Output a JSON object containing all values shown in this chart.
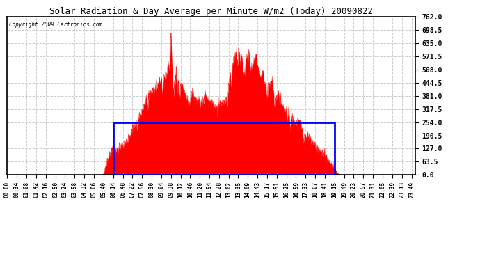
{
  "title": "Solar Radiation & Day Average per Minute W/m2 (Today) 20090822",
  "copyright": "Copyright 2009 Cartronics.com",
  "y_ticks": [
    0.0,
    63.5,
    127.0,
    190.5,
    254.0,
    317.5,
    381.0,
    444.5,
    508.0,
    571.5,
    635.0,
    698.5,
    762.0
  ],
  "y_min": 0.0,
  "y_max": 762.0,
  "bg_color": "#ffffff",
  "fill_color": "#ff0000",
  "line_color": "#ff0000",
  "grid_color": "#cccccc",
  "avg_box_color": "#0000ff",
  "avg_value": 254.0,
  "avg_start_minute": 374,
  "avg_end_minute": 1155,
  "total_minutes": 1440,
  "x_tick_labels": [
    "00:00",
    "00:34",
    "01:08",
    "01:42",
    "02:16",
    "02:50",
    "03:24",
    "03:58",
    "04:32",
    "05:06",
    "05:40",
    "06:14",
    "06:48",
    "07:22",
    "07:56",
    "08:30",
    "09:04",
    "09:38",
    "10:12",
    "10:46",
    "11:20",
    "11:54",
    "12:28",
    "13:02",
    "13:35",
    "14:09",
    "14:43",
    "15:17",
    "15:51",
    "16:25",
    "16:59",
    "17:33",
    "18:07",
    "18:41",
    "19:15",
    "19:49",
    "20:23",
    "20:57",
    "21:31",
    "22:05",
    "22:39",
    "23:13",
    "23:49"
  ],
  "x_tick_positions": [
    0,
    34,
    68,
    102,
    136,
    170,
    204,
    238,
    272,
    306,
    340,
    374,
    408,
    442,
    476,
    510,
    544,
    578,
    612,
    646,
    680,
    714,
    748,
    782,
    815,
    849,
    883,
    917,
    951,
    985,
    1019,
    1053,
    1087,
    1121,
    1155,
    1189,
    1223,
    1257,
    1291,
    1325,
    1359,
    1393,
    1429
  ]
}
